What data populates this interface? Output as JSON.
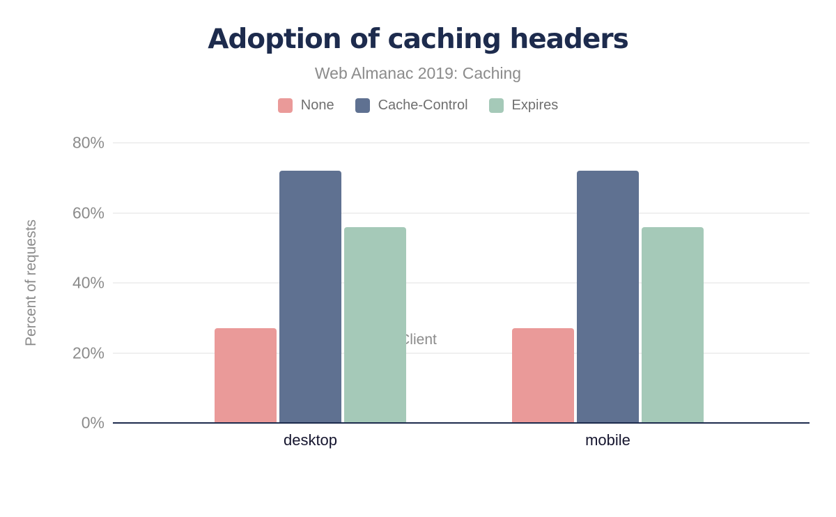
{
  "title": "Adoption of caching headers",
  "subtitle": "Web Almanac 2019: Caching",
  "chart_data": {
    "type": "bar",
    "title": "Adoption of caching headers",
    "subtitle": "Web Almanac 2019: Caching",
    "categories": [
      "desktop",
      "mobile"
    ],
    "series": [
      {
        "name": "None",
        "color": "#ea9a99",
        "values": [
          27,
          27
        ]
      },
      {
        "name": "Cache-Control",
        "color": "#5f7191",
        "values": [
          72,
          72
        ]
      },
      {
        "name": "Expires",
        "color": "#a5c9b8",
        "values": [
          56,
          56
        ]
      }
    ],
    "xlabel": "Client",
    "ylabel": "Percent of requests",
    "ylim": [
      0,
      80
    ],
    "yticks": [
      0,
      20,
      40,
      60,
      80
    ],
    "ytick_suffix": "%",
    "grid": true,
    "legend_position": "top"
  },
  "colors": {
    "title": "#1d2b4d",
    "subtitle": "#8b8b8b",
    "axis_text": "#8b8b8b",
    "category_text": "#15152e",
    "legend_text": "#6f6f6f",
    "gridline": "#f0f0f0",
    "baseline": "#1d2b4d",
    "background": "#ffffff"
  }
}
